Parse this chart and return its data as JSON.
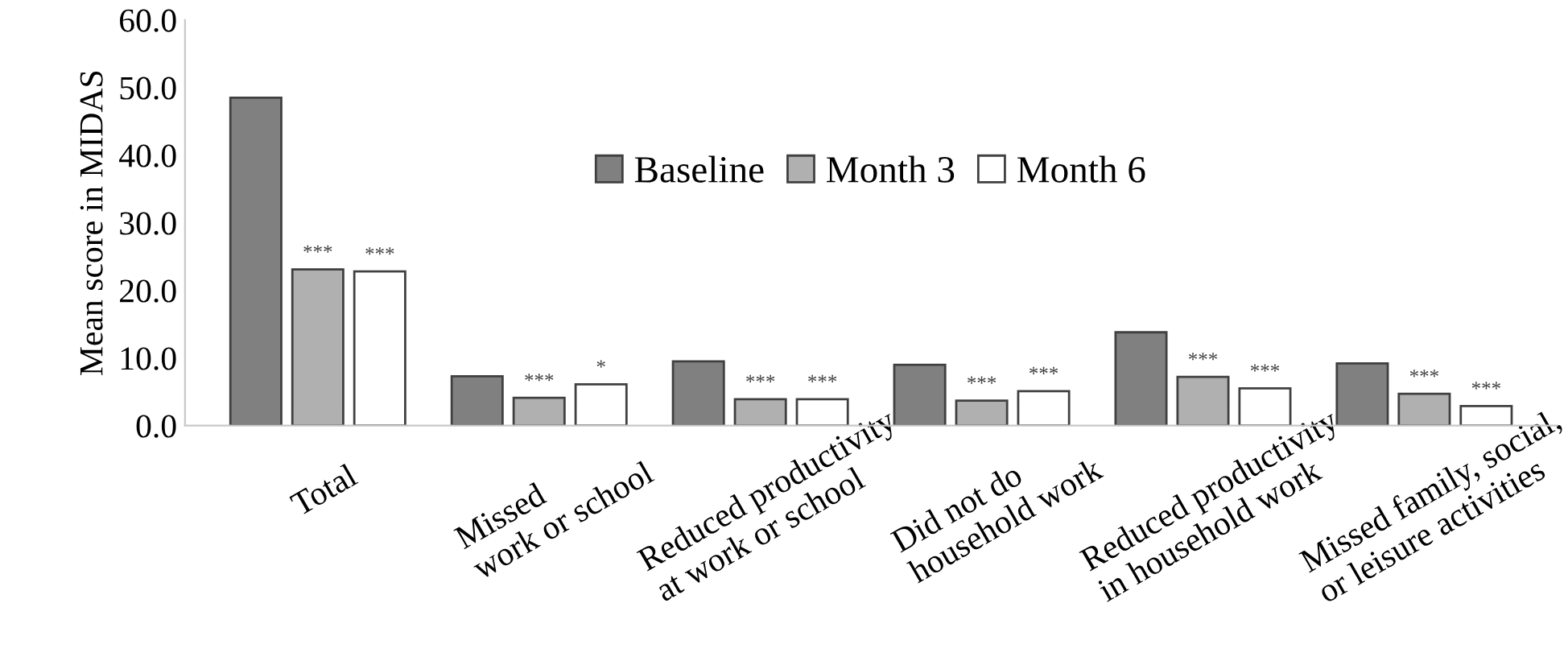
{
  "chart_data": {
    "type": "bar",
    "ylabel": "Mean score in MIDAS",
    "categories": [
      "Total",
      "Missed\nwork or school",
      "Reduced productivity\nat work or school",
      "Did not do\nhousehold work",
      "Reduced productivity\nin household work",
      "Missed family, social,\nor leisure activities"
    ],
    "series": [
      {
        "name": "Baseline",
        "color": "#808080",
        "values": [
          48.5,
          7.3,
          9.5,
          9.0,
          13.8,
          9.2
        ]
      },
      {
        "name": "Month 3",
        "color": "#b0b0b0",
        "values": [
          23.1,
          4.1,
          3.9,
          3.7,
          7.2,
          4.7
        ],
        "value_labels": [
          "***",
          "***",
          "***",
          "***",
          "***",
          "***"
        ]
      },
      {
        "name": "Month 6",
        "color": "#ffffff",
        "values": [
          22.8,
          6.1,
          3.9,
          5.1,
          5.5,
          2.9
        ],
        "value_labels": [
          "***",
          "*",
          "***",
          "***",
          "***",
          "***"
        ]
      }
    ],
    "ylim": [
      0,
      60
    ],
    "yticks": [
      {
        "value": 0,
        "label": "0.0"
      },
      {
        "value": 10,
        "label": "10.0"
      },
      {
        "value": 20,
        "label": "20.0"
      },
      {
        "value": 30,
        "label": "30.0"
      },
      {
        "value": 40,
        "label": "40.0"
      },
      {
        "value": 50,
        "label": "50.0"
      },
      {
        "value": 60,
        "label": "60.0"
      }
    ],
    "grid": false,
    "legend": "top"
  }
}
